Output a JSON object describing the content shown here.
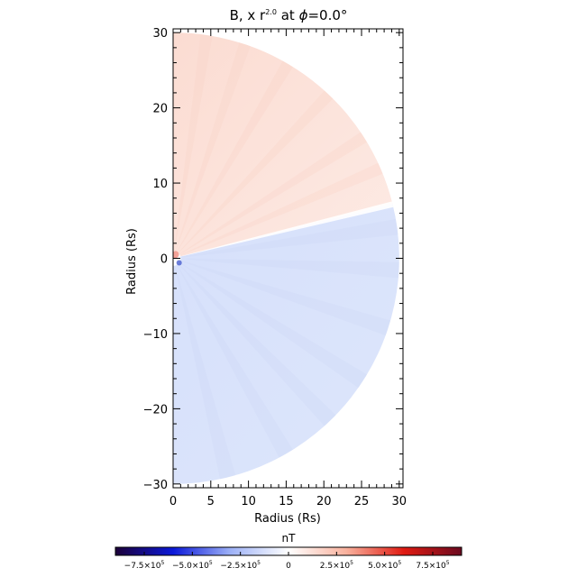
{
  "chart_data": {
    "type": "heatmap",
    "title": {
      "prefix": "B, x r",
      "exponent": "2.0",
      "mid": " at ",
      "phi": "ϕ",
      "suffix": "=0.0°"
    },
    "xlabel": "Radius (Rs)",
    "ylabel": "Radius (Rs)",
    "xlim": [
      0,
      30.5
    ],
    "ylim": [
      -30.5,
      30.5
    ],
    "x_ticks": [
      "0",
      "5",
      "10",
      "15",
      "20",
      "25",
      "30"
    ],
    "x_tick_values": [
      0,
      5,
      10,
      15,
      20,
      25,
      30
    ],
    "y_ticks": [
      "30",
      "20",
      "10",
      "0",
      "−10",
      "−20",
      "−30"
    ],
    "y_tick_values": [
      30,
      20,
      10,
      0,
      -10,
      -20,
      -30
    ],
    "domain": {
      "inner_radius": 1,
      "outer_radius": 30,
      "theta_range_deg": [
        -90,
        90
      ]
    },
    "current_sheet_angle_deg": 14,
    "regions": [
      {
        "name": "positive polarity",
        "theta_deg": [
          14,
          90
        ],
        "color": "#fce6df"
      },
      {
        "name": "negative polarity",
        "theta_deg": [
          -90,
          14
        ],
        "color": "#dbe5fb"
      }
    ],
    "colorbar": {
      "label": "nT",
      "range": [
        -900000,
        900000
      ],
      "colors": [
        "#1c0038",
        "#0b18d8",
        "#9eb2f7",
        "#ffffff",
        "#f9b29e",
        "#e01b12",
        "#6b0a20"
      ],
      "ticks": [
        {
          "label": "−7.5×10",
          "exp": "5",
          "value": -750000
        },
        {
          "label": "−5.0×10",
          "exp": "5",
          "value": -500000
        },
        {
          "label": "−2.5×10",
          "exp": "5",
          "value": -250000
        },
        {
          "label": "0",
          "exp": "",
          "value": 0
        },
        {
          "label": "2.5×10",
          "exp": "5",
          "value": 250000
        },
        {
          "label": "5.0×10",
          "exp": "5",
          "value": 500000
        },
        {
          "label": "7.5×10",
          "exp": "5",
          "value": 750000
        }
      ]
    }
  }
}
